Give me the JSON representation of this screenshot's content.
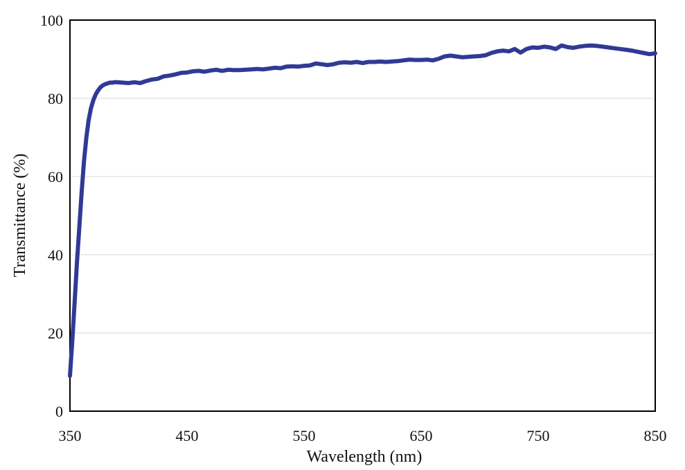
{
  "chart_data": {
    "type": "line",
    "title": "",
    "xlabel": "Wavelength  (nm)",
    "ylabel": "Transmittance  (%)",
    "xlim": [
      350,
      850
    ],
    "ylim": [
      0,
      100
    ],
    "xticks": [
      350,
      450,
      550,
      650,
      750,
      850
    ],
    "yticks": [
      0,
      20,
      40,
      60,
      80,
      100
    ],
    "grid": true,
    "legend": "none",
    "line_color": "#303a96",
    "series": [
      {
        "x": [
          350,
          352,
          354,
          356,
          358,
          360,
          362,
          364,
          366,
          368,
          370,
          372,
          374,
          376,
          378,
          380,
          382,
          384,
          386,
          388,
          390,
          395,
          400,
          405,
          410,
          415,
          420,
          425,
          430,
          435,
          440,
          445,
          450,
          455,
          460,
          465,
          470,
          475,
          480,
          485,
          490,
          495,
          500,
          505,
          510,
          515,
          520,
          525,
          530,
          535,
          540,
          545,
          550,
          555,
          560,
          565,
          570,
          575,
          580,
          585,
          590,
          595,
          600,
          605,
          610,
          615,
          620,
          625,
          630,
          635,
          640,
          645,
          650,
          655,
          660,
          665,
          670,
          675,
          680,
          685,
          690,
          695,
          700,
          705,
          710,
          715,
          720,
          725,
          730,
          735,
          740,
          745,
          750,
          755,
          760,
          765,
          770,
          775,
          780,
          785,
          790,
          795,
          800,
          805,
          810,
          815,
          820,
          825,
          830,
          835,
          840,
          845,
          850
        ],
        "y": [
          9,
          18,
          28,
          38,
          47,
          56,
          64,
          70,
          74.5,
          77.5,
          79.5,
          81,
          82,
          82.8,
          83.3,
          83.6,
          83.8,
          84,
          84,
          84.1,
          84.1,
          84,
          83.9,
          84.1,
          83.9,
          84.4,
          84.8,
          85,
          85.6,
          85.8,
          86.1,
          86.5,
          86.6,
          86.9,
          87,
          86.8,
          87.1,
          87.3,
          87,
          87.3,
          87.2,
          87.2,
          87.3,
          87.4,
          87.5,
          87.4,
          87.6,
          87.8,
          87.7,
          88.1,
          88.2,
          88.1,
          88.3,
          88.4,
          88.9,
          88.7,
          88.5,
          88.7,
          89.1,
          89.2,
          89.1,
          89.3,
          89.0,
          89.3,
          89.3,
          89.4,
          89.3,
          89.4,
          89.5,
          89.7,
          89.9,
          89.8,
          89.8,
          89.9,
          89.7,
          90.1,
          90.7,
          90.9,
          90.7,
          90.5,
          90.6,
          90.7,
          90.8,
          91.0,
          91.6,
          92.0,
          92.2,
          92.0,
          92.6,
          91.7,
          92.6,
          93.0,
          92.9,
          93.2,
          93.0,
          92.6,
          93.5,
          93.1,
          92.9,
          93.2,
          93.4,
          93.5,
          93.4,
          93.2,
          93.0,
          92.8,
          92.6,
          92.4,
          92.2,
          91.9,
          91.6,
          91.3,
          91.5
        ]
      }
    ]
  }
}
